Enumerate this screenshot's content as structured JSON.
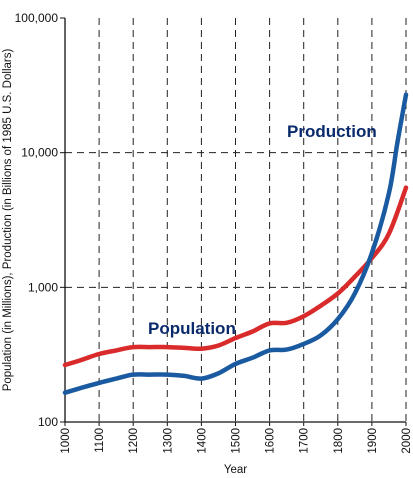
{
  "chart_data": {
    "type": "line",
    "title": "",
    "xlabel": "Year",
    "ylabel": "Population (in Millions), Production (in Billions of 1985 U.S. Dollars)",
    "y_scale": "log",
    "ylim": [
      100,
      100000
    ],
    "xlim": [
      1000,
      2000
    ],
    "y_ticks": [
      {
        "value": 100,
        "label": "100"
      },
      {
        "value": 1000,
        "label": "1,000"
      },
      {
        "value": 10000,
        "label": "10,000"
      },
      {
        "value": 100000,
        "label": "100,000"
      }
    ],
    "x_ticks": [
      "1000",
      "1100",
      "1200",
      "1300",
      "1400",
      "1500",
      "1600",
      "1700",
      "1800",
      "1900",
      "2000"
    ],
    "grid": "dashed, at every x tick and at y = 1,000 and 10,000",
    "series": [
      {
        "name": "Population",
        "color": "#d92b2b",
        "x": [
          1000,
          1050,
          1100,
          1150,
          1200,
          1250,
          1300,
          1350,
          1400,
          1450,
          1500,
          1550,
          1600,
          1650,
          1700,
          1750,
          1800,
          1850,
          1900,
          1950,
          2000
        ],
        "values": [
          265,
          290,
          320,
          340,
          360,
          360,
          360,
          355,
          350,
          370,
          420,
          470,
          540,
          545,
          610,
          730,
          900,
          1200,
          1650,
          2500,
          5500
        ]
      },
      {
        "name": "Production",
        "color": "#1a5aa0",
        "x": [
          1000,
          1050,
          1100,
          1150,
          1200,
          1250,
          1300,
          1350,
          1400,
          1450,
          1500,
          1550,
          1600,
          1650,
          1700,
          1750,
          1800,
          1850,
          1900,
          1950,
          1975,
          2000
        ],
        "values": [
          165,
          180,
          195,
          210,
          225,
          225,
          225,
          220,
          210,
          230,
          270,
          300,
          340,
          345,
          380,
          440,
          580,
          900,
          1800,
          5000,
          12000,
          27000
        ]
      }
    ]
  }
}
